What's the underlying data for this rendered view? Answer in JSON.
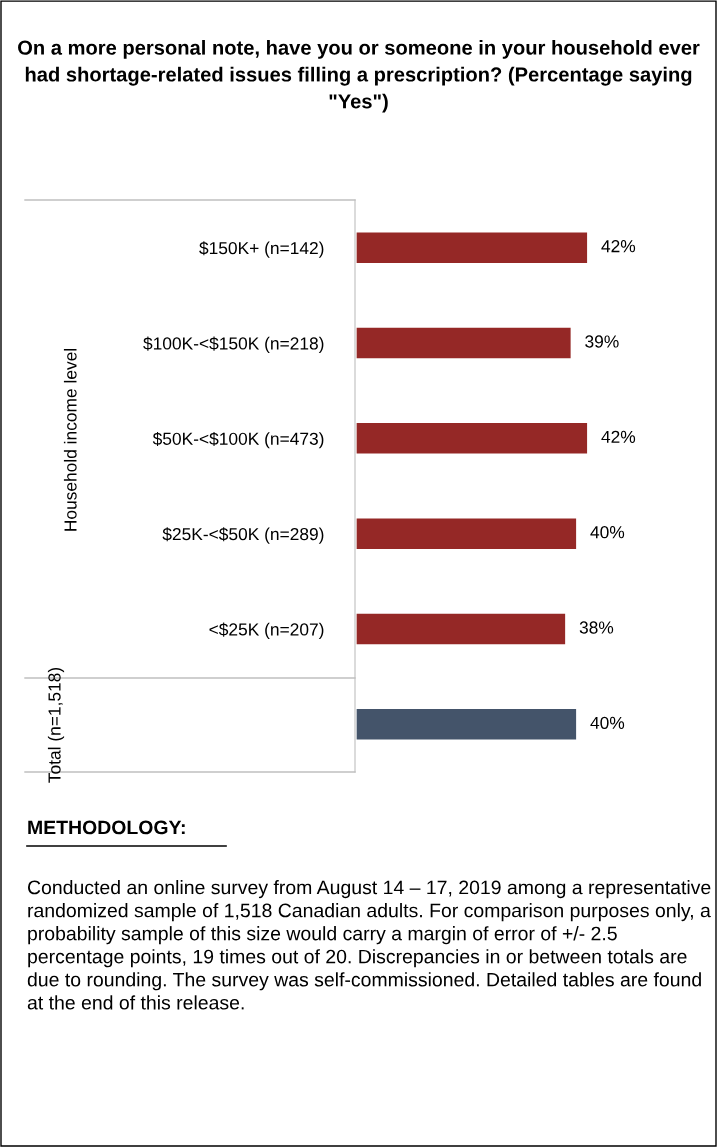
{
  "chart_data": {
    "type": "bar",
    "orientation": "horizontal",
    "title": "On a more personal note, have you or someone in your household ever had shortage-related issues filling a prescription? (Percentage saying \"Yes\")",
    "categories": [
      "$150K+ (n=142)",
      "$100K-<$150K (n=218)",
      "$50K-<$100K (n=473)",
      "$25K-<$50K (n=289)",
      "<$25K (n=207)",
      null
    ],
    "values": [
      42,
      39,
      42,
      40,
      38,
      40
    ],
    "colors": [
      "#952826",
      "#952826",
      "#952826",
      "#952826",
      "#952826",
      "#44546a"
    ],
    "value_labels": [
      "42%",
      "39%",
      "42%",
      "40%",
      "38%",
      "40%"
    ],
    "annotations": [
      "Household income level",
      "Total (n=1,518)",
      "METHODOLOGY:",
      "Conducted an online survey from August 14 – 17, 2019 among a representative randomized sample of 1,518 Canadian adults. For comparison purposes only, a probability sample of this size would carry a margin of error of +/- 2.5 percentage points, 19 times out of 20. Discrepancies in or between totals are due to rounding. The survey was self-commissioned. Detailed tables are found at the end of this release."
    ],
    "legend": false,
    "grid": false
  }
}
